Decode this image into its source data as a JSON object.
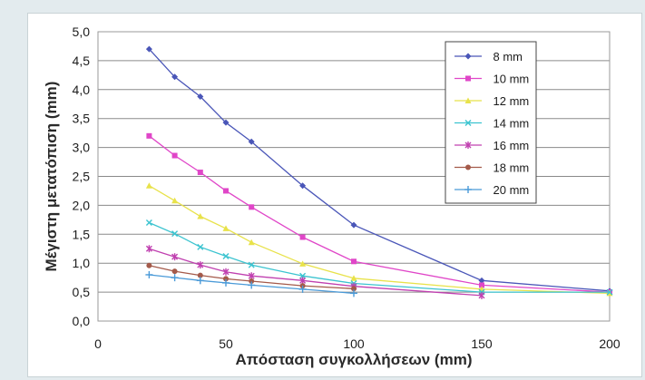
{
  "chart_data": {
    "type": "line",
    "xlabel": "Απόσταση συγκολλήσεων (mm)",
    "ylabel": "Μέγιστη μετατόπιση (mm)",
    "xlim": [
      0,
      200
    ],
    "ylim": [
      0,
      5
    ],
    "x_ticks": [
      "0",
      "50",
      "100",
      "150",
      "200"
    ],
    "y_ticks": [
      "0,0",
      "0,5",
      "1,0",
      "1,5",
      "2,0",
      "2,5",
      "3,0",
      "3,5",
      "4,0",
      "4,5",
      "5,0"
    ],
    "grid": "horizontal",
    "legend_position": "top-right",
    "background": "#e3ebee",
    "plot_background": "#ffffff",
    "series": [
      {
        "name": "8 mm",
        "color": "#4a56b8",
        "marker": "diamond",
        "x": [
          20,
          30,
          40,
          50,
          60,
          80,
          100,
          150,
          200
        ],
        "y": [
          4.7,
          4.22,
          3.88,
          3.43,
          3.1,
          2.34,
          1.66,
          0.7,
          0.52
        ]
      },
      {
        "name": "10 mm",
        "color": "#e046c8",
        "marker": "square",
        "x": [
          20,
          30,
          40,
          50,
          60,
          80,
          100,
          150,
          200
        ],
        "y": [
          3.2,
          2.86,
          2.57,
          2.25,
          1.97,
          1.45,
          1.03,
          0.62,
          0.5
        ]
      },
      {
        "name": "12 mm",
        "color": "#e8e24a",
        "marker": "triangle",
        "x": [
          20,
          30,
          40,
          50,
          60,
          80,
          100,
          150,
          200
        ],
        "y": [
          2.34,
          2.08,
          1.81,
          1.6,
          1.36,
          0.99,
          0.74,
          0.55,
          0.48
        ]
      },
      {
        "name": "14 mm",
        "color": "#3cc4d0",
        "marker": "x",
        "x": [
          20,
          30,
          40,
          50,
          60,
          80,
          100,
          150,
          200
        ],
        "y": [
          1.7,
          1.51,
          1.28,
          1.12,
          0.97,
          0.78,
          0.65,
          0.5,
          0.5
        ]
      },
      {
        "name": "16 mm",
        "color": "#c040b0",
        "marker": "star",
        "x": [
          20,
          30,
          40,
          50,
          60,
          80,
          100,
          150
        ],
        "y": [
          1.25,
          1.11,
          0.97,
          0.85,
          0.78,
          0.7,
          0.6,
          0.44
        ]
      },
      {
        "name": "18 mm",
        "color": "#a45a4a",
        "marker": "circle",
        "x": [
          20,
          30,
          40,
          50,
          60,
          80,
          100
        ],
        "y": [
          0.96,
          0.86,
          0.79,
          0.73,
          0.69,
          0.61,
          0.56
        ]
      },
      {
        "name": "20 mm",
        "color": "#4a9ad8",
        "marker": "plus",
        "x": [
          20,
          30,
          40,
          50,
          60,
          80,
          100
        ],
        "y": [
          0.8,
          0.75,
          0.7,
          0.66,
          0.62,
          0.55,
          0.48
        ]
      }
    ]
  }
}
